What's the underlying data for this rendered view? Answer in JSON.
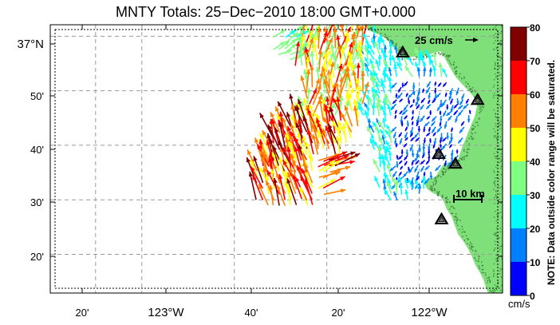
{
  "title": "MNTY Totals: 25−Dec−2010 18:00 GMT+0.000",
  "colors": {
    "land": "#7fe07a",
    "coast_speckle": "#3f7a3c",
    "grid": "#9a9a9a",
    "station_fill": "#6f6f6f",
    "colormap": [
      "#0000ff",
      "#0080ff",
      "#00ffff",
      "#7fff7f",
      "#ffff00",
      "#ff8000",
      "#ff0000",
      "#800000"
    ]
  },
  "axes": {
    "lon_labels": [
      "20'",
      "123°W",
      "40'",
      "20'",
      "122°W"
    ],
    "lat_labels": [
      "37°N",
      "50'",
      "40'",
      "30'",
      "20'"
    ]
  },
  "legend": {
    "reference_vector": "25 cm/s",
    "scale_bar": "10 km",
    "colorbar_ticks": [
      "0",
      "10",
      "20",
      "30",
      "40",
      "50",
      "60",
      "70",
      "80"
    ],
    "colorbar_unit": "cm/s",
    "note": "NOTE: Data outside color range will be saturated."
  },
  "icons": {
    "station": "triangle-station-icon",
    "reference_arrow": "arrow-right-icon"
  },
  "vectors": {
    "units": "cm/s",
    "speed_range": [
      0,
      80
    ],
    "count_estimate": 520,
    "regions": [
      {
        "zone": "offshore-southwest",
        "speed_cm_s": [
          45,
          75
        ],
        "heading": "north-northwest"
      },
      {
        "zone": "offshore-northwest",
        "speed_cm_s": [
          40,
          65
        ],
        "heading": "north to northeast"
      },
      {
        "zone": "mid-bay-transition",
        "speed_cm_s": [
          25,
          40
        ],
        "heading": "north-northwest"
      },
      {
        "zone": "inner-bay",
        "speed_cm_s": [
          2,
          18
        ],
        "heading": "south-southwest"
      }
    ]
  },
  "stations": [
    {
      "name": "",
      "lat": 36.95,
      "lon": -122.06
    },
    {
      "name": "",
      "lat": 36.805,
      "lon": -121.79
    },
    {
      "name": "",
      "lat": 36.64,
      "lon": -121.93
    },
    {
      "name": "",
      "lat": 36.61,
      "lon": -121.87
    },
    {
      "name": "",
      "lat": 36.44,
      "lon": -121.92
    }
  ],
  "map_extent": {
    "lon_min": -123.33,
    "lon_max": -121.7,
    "lat_min": 36.215,
    "lat_max": 37.035
  }
}
